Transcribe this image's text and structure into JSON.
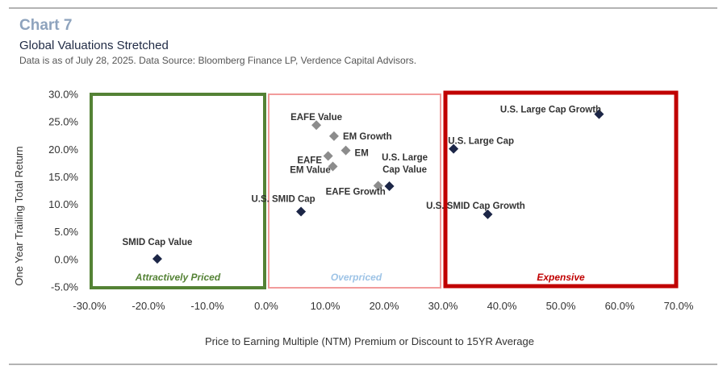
{
  "header": {
    "chart_number": "Chart 7",
    "title": "Global Valuations Stretched",
    "source": "Data is as of July 28, 2025. Data Source: Bloomberg Finance LP, Verdence Capital Advisors."
  },
  "colors": {
    "dark_point": "#1c2647",
    "gray_point": "#8c8c8c",
    "green_zone": "#548235",
    "pink_zone": "#f29b9b",
    "red_zone": "#c00000",
    "overpriced_text": "#9dc3e6"
  },
  "chart_data": {
    "type": "scatter",
    "xlabel": "Price to Earning Multiple (NTM) Premium or Discount to 15YR Average",
    "ylabel": "One Year Trailing Total Return",
    "xlim": [
      -30,
      70
    ],
    "ylim": [
      -5,
      30
    ],
    "x_ticks": [
      -30,
      -20,
      -10,
      0,
      10,
      20,
      30,
      40,
      50,
      60,
      70
    ],
    "x_tick_labels": [
      "-30.0%",
      "-20.0%",
      "-10.0%",
      "0.0%",
      "10.0%",
      "20.0%",
      "30.0%",
      "40.0%",
      "50.0%",
      "60.0%",
      "70.0%"
    ],
    "y_ticks": [
      -5,
      0,
      5,
      10,
      15,
      20,
      25,
      30
    ],
    "y_tick_labels": [
      "-5.0%",
      "0.0%",
      "5.0%",
      "10.0%",
      "15.0%",
      "20.0%",
      "25.0%",
      "30.0%"
    ],
    "grid": false,
    "points": [
      {
        "label": [
          "SMID Cap Value"
        ],
        "x": -18.5,
        "y": 0.1,
        "color": "dark"
      },
      {
        "label": [
          "EAFE Value"
        ],
        "x": 8.5,
        "y": 24.4,
        "color": "gray"
      },
      {
        "label": [
          "EM Growth"
        ],
        "x": 11.5,
        "y": 22.4,
        "color": "gray"
      },
      {
        "label": [
          "EM"
        ],
        "x": 13.5,
        "y": 19.8,
        "color": "gray"
      },
      {
        "label": [
          "EAFE"
        ],
        "x": 10.5,
        "y": 18.8,
        "color": "gray"
      },
      {
        "label": [
          "EM Value"
        ],
        "x": 11.3,
        "y": 16.9,
        "color": "gray"
      },
      {
        "label": [
          "EAFE Growth"
        ],
        "x": 19.0,
        "y": 13.4,
        "color": "gray"
      },
      {
        "label": [
          "U.S. Large",
          "Cap Value"
        ],
        "x": 20.9,
        "y": 13.3,
        "color": "dark"
      },
      {
        "label": [
          "U.S. SMID Cap"
        ],
        "x": 5.9,
        "y": 8.7,
        "color": "dark"
      },
      {
        "label": [
          "U.S. Large Cap"
        ],
        "x": 31.8,
        "y": 20.1,
        "color": "dark"
      },
      {
        "label": [
          "U.S. SMID Cap Growth"
        ],
        "x": 37.6,
        "y": 8.2,
        "color": "dark"
      },
      {
        "label": [
          "U.S. Large Cap Growth"
        ],
        "x": 56.5,
        "y": 26.4,
        "color": "dark"
      }
    ],
    "zones": [
      {
        "label": "Attractively Priced",
        "x0": -30,
        "x1": 0,
        "color": "green"
      },
      {
        "label": "Overpriced",
        "x0": 0,
        "x1": 30,
        "color": "pink"
      },
      {
        "label": "Expensive",
        "x0": 30,
        "x1": 70,
        "color": "red"
      }
    ]
  }
}
